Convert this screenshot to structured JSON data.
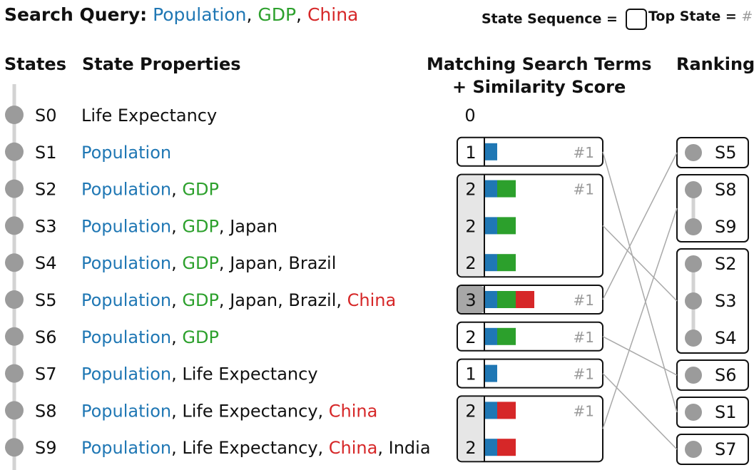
{
  "query": {
    "label": "Search Query:",
    "terms": [
      {
        "text": "Population",
        "color": "#1f77b4"
      },
      {
        "text": "GDP",
        "color": "#2ca02c"
      },
      {
        "text": "China",
        "color": "#d62728"
      }
    ],
    "separator": ", "
  },
  "legend": {
    "state_sequence": "State Sequence =",
    "top_state": "Top State =",
    "top_state_mark": "#1"
  },
  "headers": {
    "states": "States",
    "properties": "State Properties",
    "matching_line1": "Matching Search Terms",
    "matching_line2": "+ Similarity Score",
    "ranking": "Ranking"
  },
  "term_colors": {
    "Population": "#1f77b4",
    "GDP": "#2ca02c",
    "China": "#d62728"
  },
  "states": [
    {
      "id": "S0",
      "props": [
        "Life Expectancy"
      ],
      "score": 0,
      "bar": [],
      "top": false
    },
    {
      "id": "S1",
      "props": [
        "Population"
      ],
      "score": 1,
      "bar": [
        "Population"
      ],
      "top": true
    },
    {
      "id": "S2",
      "props": [
        "Population",
        "GDP"
      ],
      "score": 2,
      "bar": [
        "Population",
        "GDP"
      ],
      "top": true
    },
    {
      "id": "S3",
      "props": [
        "Population",
        "GDP",
        "Japan"
      ],
      "score": 2,
      "bar": [
        "Population",
        "GDP"
      ],
      "top": false
    },
    {
      "id": "S4",
      "props": [
        "Population",
        "GDP",
        "Japan",
        "Brazil"
      ],
      "score": 2,
      "bar": [
        "Population",
        "GDP"
      ],
      "top": false
    },
    {
      "id": "S5",
      "props": [
        "Population",
        "GDP",
        "Japan",
        "Brazil",
        "China"
      ],
      "score": 3,
      "bar": [
        "Population",
        "GDP",
        "China"
      ],
      "top": true
    },
    {
      "id": "S6",
      "props": [
        "Population",
        "GDP"
      ],
      "score": 2,
      "bar": [
        "Population",
        "GDP"
      ],
      "top": true
    },
    {
      "id": "S7",
      "props": [
        "Population",
        "Life Expectancy"
      ],
      "score": 1,
      "bar": [
        "Population"
      ],
      "top": true
    },
    {
      "id": "S8",
      "props": [
        "Population",
        "Life Expectancy",
        "China"
      ],
      "score": 2,
      "bar": [
        "Population",
        "China"
      ],
      "top": true
    },
    {
      "id": "S9",
      "props": [
        "Population",
        "Life Expectancy",
        "China",
        "India"
      ],
      "score": 2,
      "bar": [
        "Population",
        "China"
      ],
      "top": false
    }
  ],
  "sequences": [
    {
      "states": [
        "S1"
      ],
      "shade": "none"
    },
    {
      "states": [
        "S2",
        "S3",
        "S4"
      ],
      "shade": "light"
    },
    {
      "states": [
        "S5"
      ],
      "shade": "dark"
    },
    {
      "states": [
        "S6"
      ],
      "shade": "none"
    },
    {
      "states": [
        "S7"
      ],
      "shade": "none"
    },
    {
      "states": [
        "S8",
        "S9"
      ],
      "shade": "light"
    }
  ],
  "ranking": [
    [
      "S5"
    ],
    [
      "S8",
      "S9"
    ],
    [
      "S2",
      "S3",
      "S4"
    ],
    [
      "S6"
    ],
    [
      "S1"
    ],
    [
      "S7"
    ]
  ],
  "ranking_links": [
    {
      "from": "S1",
      "to": "S1"
    },
    {
      "from": "S2",
      "to": "S3"
    },
    {
      "from": "S5",
      "to": "S5"
    },
    {
      "from": "S6",
      "to": "S6"
    },
    {
      "from": "S7",
      "to": "S7"
    },
    {
      "from": "S8",
      "to": "S8"
    }
  ]
}
